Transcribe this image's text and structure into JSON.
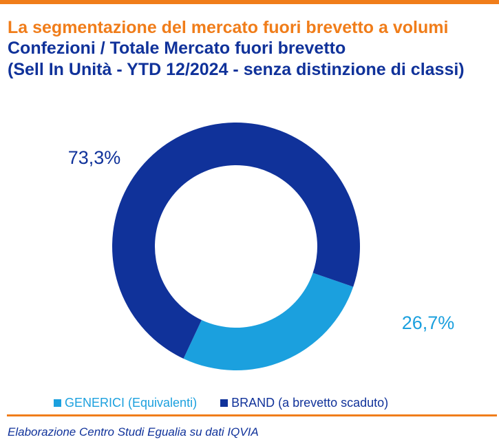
{
  "header": {
    "title": "La segmentazione del mercato fuori brevetto a volumi",
    "subtitle_line1": "Confezioni / Totale Mercato fuori brevetto",
    "subtitle_line2": "(Sell In Unità - YTD 12/2024 - senza distinzione di classi)"
  },
  "chart_data": {
    "type": "pie",
    "donut": true,
    "slices": [
      {
        "name": "GENERICI (Equivalenti)",
        "value": 26.7,
        "label": "26,7%",
        "color": "#1ba0de"
      },
      {
        "name": "BRAND (a brevetto scaduto)",
        "value": 73.3,
        "label": "73,3%",
        "color": "#10329a"
      }
    ],
    "legend_position": "bottom"
  },
  "legend": {
    "generici": "GENERICI (Equivalenti)",
    "brand": "BRAND (a brevetto scaduto)"
  },
  "footer": {
    "note": "Elaborazione Centro Studi Egualia su dati IQVIA"
  },
  "colors": {
    "accent_orange": "#f07d1a",
    "brand_blue": "#10329a",
    "generici_blue": "#1ba0de"
  }
}
